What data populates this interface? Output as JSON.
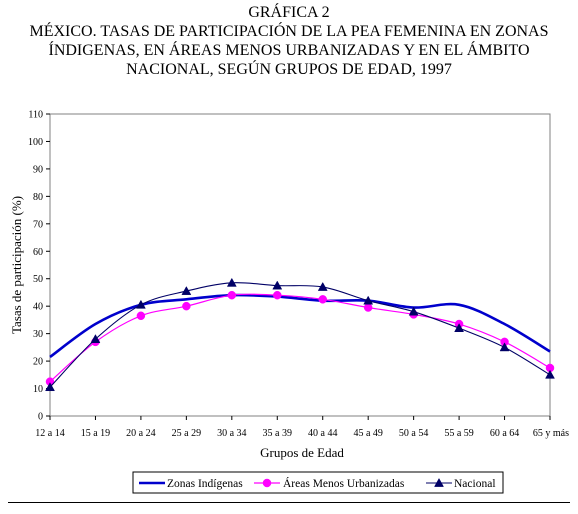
{
  "chart_data": {
    "type": "line",
    "title_lines": [
      "GRÁFICA 2",
      "MÉXICO. TASAS DE PARTICIPACIÓN DE LA PEA FEMENINA EN ZONAS",
      "ÍNDIGENAS, EN ÁREAS MENOS URBANIZADAS Y EN EL ÁMBITO",
      "NACIONAL, SEGÚN GRUPOS DE EDAD, 1997"
    ],
    "xlabel": "Grupos de Edad",
    "ylabel": "Tasas de participación (%)",
    "ylim": [
      0,
      110
    ],
    "ytick_step": 10,
    "yticks": [
      "0",
      "10",
      "20",
      "30",
      "40",
      "50",
      "60",
      "70",
      "80",
      "90",
      "100",
      "110"
    ],
    "categories": [
      "12 a 14",
      "15 a 19",
      "20 a 24",
      "25 a 29",
      "30 a 34",
      "35 a 39",
      "40 a 44",
      "45 a 49",
      "50 a 54",
      "55 a 59",
      "60 a 64",
      "65 y más"
    ],
    "grid": false,
    "legend_position": "bottom",
    "series": [
      {
        "name": "Zonas Indígenas",
        "color": "#0000cc",
        "marker": "none",
        "values": [
          21.5,
          33.5,
          40.5,
          42.5,
          44,
          43.5,
          42,
          42,
          39.5,
          40.5,
          33.5,
          23.5
        ]
      },
      {
        "name": "Áreas Menos Urbanizadas",
        "color": "#ff00ff",
        "marker": "circle",
        "values": [
          12.5,
          27,
          36.5,
          40,
          44,
          44,
          42.5,
          39.5,
          37,
          33.5,
          27,
          17.5
        ]
      },
      {
        "name": "Nacional",
        "color": "#000066",
        "marker": "triangle",
        "values": [
          10.5,
          28,
          40.5,
          45.5,
          48.5,
          47.5,
          47,
          42,
          38,
          32,
          25,
          15
        ]
      }
    ]
  }
}
